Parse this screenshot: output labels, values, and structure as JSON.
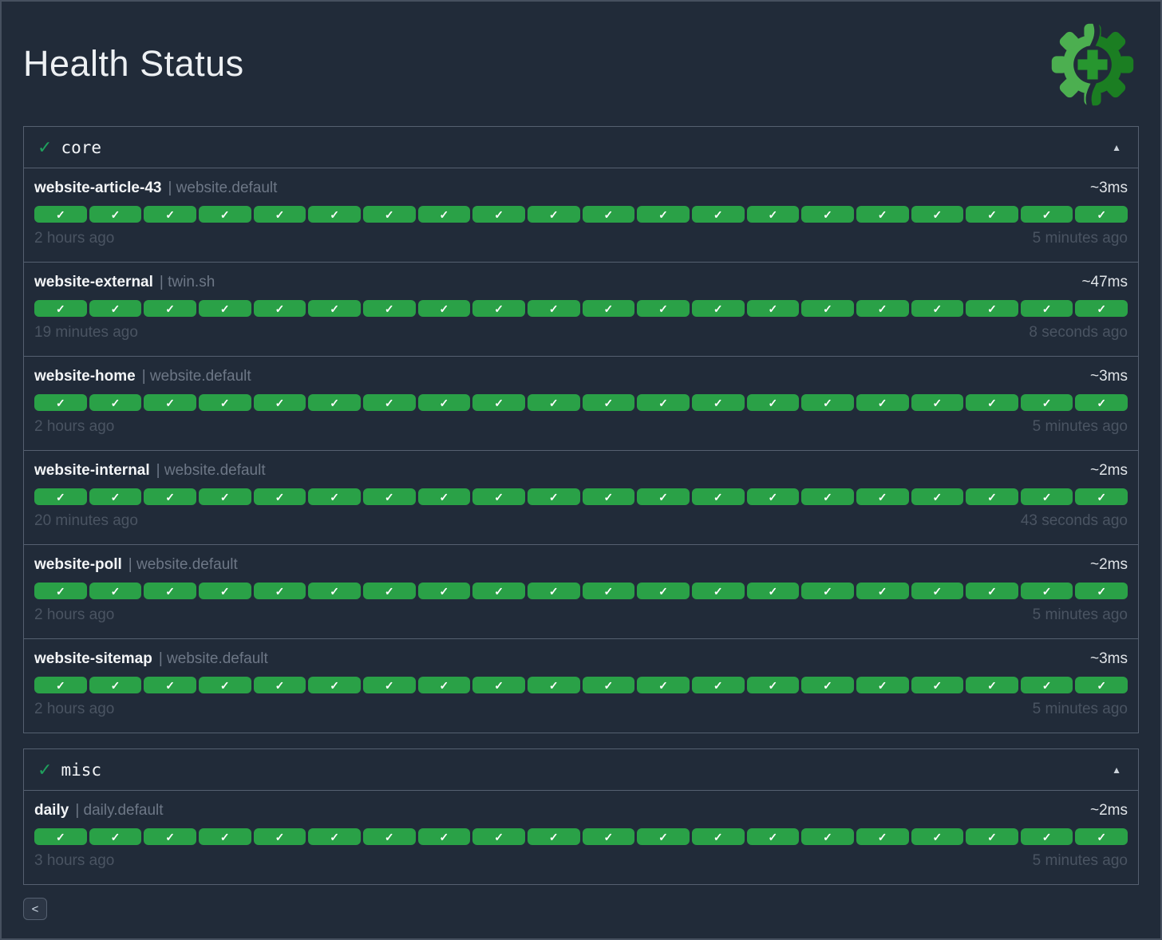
{
  "app": {
    "title": "Health Status",
    "group_separator": "|",
    "back_label": "<",
    "logo": "green-gear-with-plus"
  },
  "colors": {
    "background": "#212b39",
    "panel_border": "#556070",
    "pill_green": "#2aa147",
    "header_check_green": "#1fa15d",
    "logo_light_green": "#4caf50",
    "logo_dark_green": "#1b7e22",
    "logo_plus_green": "#27962f",
    "text_primary": "#edf0f3",
    "text_muted": "#6d7786",
    "text_faint": "#4a5462"
  },
  "sections": [
    {
      "name": "core",
      "status": "success",
      "status_symbol": "✓",
      "collapse_symbol": "▲",
      "checks": [
        {
          "name": "website-article-43",
          "group": "website.default",
          "latency": "~3ms",
          "oldest": "2 hours ago",
          "newest": "5 minutes ago",
          "history": {
            "count": 20,
            "status": "success",
            "symbol": "✓"
          }
        },
        {
          "name": "website-external",
          "group": "twin.sh",
          "latency": "~47ms",
          "oldest": "19 minutes ago",
          "newest": "8 seconds ago",
          "history": {
            "count": 20,
            "status": "success",
            "symbol": "✓"
          }
        },
        {
          "name": "website-home",
          "group": "website.default",
          "latency": "~3ms",
          "oldest": "2 hours ago",
          "newest": "5 minutes ago",
          "history": {
            "count": 20,
            "status": "success",
            "symbol": "✓"
          }
        },
        {
          "name": "website-internal",
          "group": "website.default",
          "latency": "~2ms",
          "oldest": "20 minutes ago",
          "newest": "43 seconds ago",
          "history": {
            "count": 20,
            "status": "success",
            "symbol": "✓"
          }
        },
        {
          "name": "website-poll",
          "group": "website.default",
          "latency": "~2ms",
          "oldest": "2 hours ago",
          "newest": "5 minutes ago",
          "history": {
            "count": 20,
            "status": "success",
            "symbol": "✓"
          }
        },
        {
          "name": "website-sitemap",
          "group": "website.default",
          "latency": "~3ms",
          "oldest": "2 hours ago",
          "newest": "5 minutes ago",
          "history": {
            "count": 20,
            "status": "success",
            "symbol": "✓"
          }
        }
      ]
    },
    {
      "name": "misc",
      "status": "success",
      "status_symbol": "✓",
      "collapse_symbol": "▲",
      "checks": [
        {
          "name": "daily",
          "group": "daily.default",
          "latency": "~2ms",
          "oldest": "3 hours ago",
          "newest": "5 minutes ago",
          "history": {
            "count": 20,
            "status": "success",
            "symbol": "✓"
          }
        }
      ]
    }
  ]
}
